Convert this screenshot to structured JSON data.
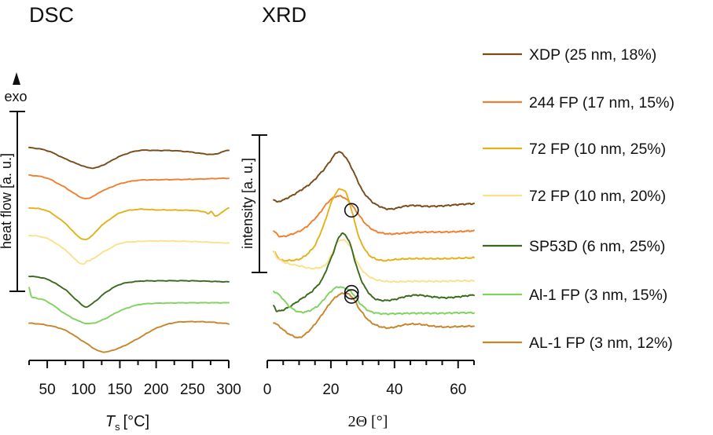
{
  "chart_data": [
    {
      "type": "line",
      "title": "DSC",
      "xlabel_main": "T",
      "xlabel_sub": "s",
      "xlabel_unit": "[°C]",
      "ylabel": "heat flow [a. u.]",
      "exo_label": "exo",
      "xlim": [
        25,
        300
      ],
      "xticks": [
        50,
        100,
        150,
        200,
        250,
        300
      ],
      "x_minor_step": 25,
      "series": [
        {
          "name": "XDP (25 nm, 18%)",
          "color": "#7a4a18",
          "offset": 18.0,
          "x": [
            25,
            50,
            75,
            100,
            112,
            125,
            150,
            175,
            200,
            225,
            250,
            265,
            280,
            300
          ],
          "y": [
            2.0,
            1.7,
            0.9,
            0.2,
            0.0,
            0.25,
            1.15,
            1.7,
            1.72,
            1.7,
            1.55,
            1.4,
            1.35,
            1.75
          ]
        },
        {
          "name": "244 FP (17 nm, 15%)",
          "color": "#f08030",
          "offset": 15.0,
          "x": [
            25,
            50,
            75,
            90,
            102,
            112,
            125,
            150,
            175,
            200,
            250,
            300
          ],
          "y": [
            2.3,
            2.0,
            1.1,
            0.4,
            0.0,
            0.2,
            0.75,
            1.45,
            1.8,
            1.85,
            1.9,
            2.0
          ]
        },
        {
          "name": "72 FP (10 nm, 25%)",
          "color": "#e3b21a",
          "offset": 11.0,
          "x": [
            25,
            50,
            75,
            90,
            100,
            110,
            125,
            150,
            175,
            200,
            250,
            268,
            272,
            276,
            282,
            300
          ],
          "y": [
            3.1,
            2.8,
            1.6,
            0.5,
            0.0,
            0.3,
            1.4,
            2.6,
            2.95,
            2.9,
            2.85,
            2.7,
            2.5,
            2.75,
            2.3,
            3.1
          ]
        },
        {
          "name": "72 FP (10 nm, 20%)",
          "color": "#fbe08e",
          "offset": 8.6,
          "x": [
            25,
            50,
            75,
            90,
            97,
            102,
            104,
            110,
            125,
            150,
            175,
            200,
            250,
            300
          ],
          "y": [
            2.8,
            2.5,
            1.4,
            0.4,
            0.0,
            0.05,
            0.3,
            0.4,
            1.1,
            2.0,
            2.2,
            2.25,
            2.2,
            2.05
          ]
        },
        {
          "name": "SP53D (6 nm, 25%)",
          "color": "#3a6a1e",
          "offset": 4.4,
          "x": [
            25,
            50,
            75,
            90,
            103,
            115,
            130,
            150,
            175,
            200,
            250,
            300
          ],
          "y": [
            3.0,
            2.7,
            1.7,
            0.7,
            0.0,
            0.5,
            1.4,
            2.2,
            2.5,
            2.55,
            2.55,
            2.45
          ]
        },
        {
          "name": "Al-1 FP (3 nm, 15%)",
          "color": "#7fd35f",
          "offset": 2.8,
          "x": [
            25,
            28,
            35,
            50,
            75,
            100,
            112,
            125,
            150,
            175,
            200,
            250,
            300
          ],
          "y": [
            3.5,
            2.6,
            2.45,
            2.1,
            0.9,
            0.05,
            0.0,
            0.3,
            1.2,
            1.8,
            1.95,
            2.0,
            2.0
          ]
        },
        {
          "name": "AL-1 FP (3 nm, 12%)",
          "color": "#c8862c",
          "offset": 0.0,
          "x": [
            25,
            50,
            75,
            100,
            125,
            150,
            175,
            200,
            225,
            250,
            275,
            300
          ],
          "y": [
            2.8,
            2.6,
            2.1,
            1.0,
            0.0,
            0.4,
            1.3,
            2.3,
            2.85,
            2.95,
            2.9,
            2.75
          ]
        }
      ]
    },
    {
      "type": "line",
      "title": "XRD",
      "xlabel": "2Θ [°]",
      "ylabel": "intensity [a. u.]",
      "xlim": [
        0,
        65
      ],
      "xticks": [
        0,
        20,
        40,
        60
      ],
      "x_minor_step": 5,
      "series": [
        {
          "name": "XDP (25 nm, 18%)",
          "color": "#7a4a18",
          "offset": 12.7,
          "x": [
            2,
            3,
            4,
            6,
            10,
            14,
            18,
            20,
            22,
            24,
            26,
            28,
            30,
            33,
            36,
            38,
            40,
            43,
            46,
            50,
            55,
            60,
            65
          ],
          "y": [
            2.9,
            2.6,
            2.7,
            3.0,
            3.8,
            4.8,
            6.3,
            7.3,
            8.2,
            7.9,
            6.8,
            5.3,
            3.8,
            2.6,
            2.0,
            1.8,
            1.85,
            2.1,
            2.2,
            2.1,
            2.15,
            2.3,
            2.4
          ]
        },
        {
          "name": "244 FP (17 nm, 15%)",
          "color": "#f08030",
          "offset": 10.8,
          "x": [
            2,
            4,
            8,
            12,
            16,
            19,
            21,
            22.5,
            24,
            26,
            28,
            31,
            34,
            38,
            42,
            46,
            50,
            55,
            60,
            65
          ],
          "y": [
            1.2,
            0.6,
            0.9,
            1.6,
            3.0,
            4.4,
            5.0,
            5.15,
            5.0,
            4.4,
            3.4,
            2.0,
            1.2,
            0.9,
            0.95,
            1.05,
            1.1,
            1.1,
            1.15,
            1.25
          ]
        },
        {
          "name": "72 FP (10 nm, 25%)",
          "color": "#e3b21a",
          "offset": 7.9,
          "x": [
            2,
            4,
            7,
            11,
            15,
            18,
            20,
            22,
            23.5,
            25,
            27,
            29,
            32,
            36,
            40,
            45,
            50,
            55,
            60,
            65
          ],
          "y": [
            1.8,
            0.9,
            0.8,
            1.1,
            2.5,
            5.0,
            7.2,
            8.6,
            8.8,
            8.2,
            5.8,
            3.2,
            1.4,
            0.8,
            0.9,
            1.0,
            1.0,
            1.0,
            1.05,
            1.1
          ]
        },
        {
          "name": "72 FP (10 nm, 20%)",
          "color": "#fbe08e",
          "offset": 5.5,
          "x": [
            2,
            3,
            6,
            10,
            14,
            18,
            20,
            22,
            24,
            26,
            28,
            30,
            33,
            36,
            40,
            45,
            50,
            55,
            60,
            65
          ],
          "y": [
            4.2,
            3.5,
            2.9,
            2.6,
            2.3,
            2.6,
            3.7,
            5.2,
            5.5,
            4.8,
            3.2,
            2.0,
            1.2,
            0.9,
            0.8,
            0.85,
            0.85,
            0.85,
            0.9,
            0.9
          ]
        },
        {
          "name": "SP53D (6 nm, 25%)",
          "color": "#3a6a1e",
          "offset": 2.6,
          "x": [
            2,
            3,
            6,
            10,
            14,
            17,
            19,
            21,
            22.5,
            24,
            26,
            28,
            30,
            33,
            36,
            40,
            43,
            47,
            52,
            56,
            60,
            65
          ],
          "y": [
            1.0,
            0.4,
            0.7,
            1.6,
            2.6,
            3.8,
            5.4,
            7.2,
            8.7,
            9.1,
            8.0,
            5.5,
            3.5,
            2.0,
            1.6,
            1.7,
            2.0,
            2.2,
            2.0,
            1.9,
            2.0,
            2.2
          ]
        },
        {
          "name": "Al-1 FP (3 nm, 15%)",
          "color": "#7fd35f",
          "offset": 2.1,
          "x": [
            2,
            4,
            7,
            10,
            13,
            16,
            18,
            20,
            22,
            24,
            25.5,
            27,
            29,
            32,
            36,
            40,
            45,
            50,
            55,
            60,
            65
          ],
          "y": [
            3.1,
            2.6,
            1.4,
            0.8,
            0.9,
            1.5,
            2.3,
            3.1,
            3.6,
            3.5,
            3.3,
            2.8,
            1.8,
            0.9,
            0.6,
            0.6,
            0.65,
            0.65,
            0.65,
            0.7,
            0.7
          ]
        },
        {
          "name": "AL-1 FP (3 nm, 12%)",
          "color": "#c8862c",
          "offset": 0.0,
          "x": [
            2,
            4,
            6,
            8,
            10,
            12,
            14,
            16,
            18,
            20,
            22,
            24,
            25.5,
            27,
            29,
            32,
            35,
            38,
            40,
            44,
            48,
            52,
            56,
            60,
            65
          ],
          "y": [
            1.7,
            1.2,
            0.6,
            0.2,
            0.0,
            0.4,
            1.1,
            2.0,
            3.0,
            4.0,
            4.7,
            5.0,
            4.9,
            4.4,
            3.2,
            1.9,
            1.3,
            1.1,
            1.2,
            1.5,
            1.5,
            1.3,
            1.2,
            1.25,
            1.3
          ]
        }
      ],
      "circle_markers": [
        {
          "series": "72 FP (10 nm, 25%)",
          "x": 26.5
        },
        {
          "series": "Al-1 FP (3 nm, 15%)",
          "x": 26.5
        },
        {
          "series": "AL-1 FP (3 nm, 12%)",
          "x": 26.5
        }
      ]
    }
  ]
}
